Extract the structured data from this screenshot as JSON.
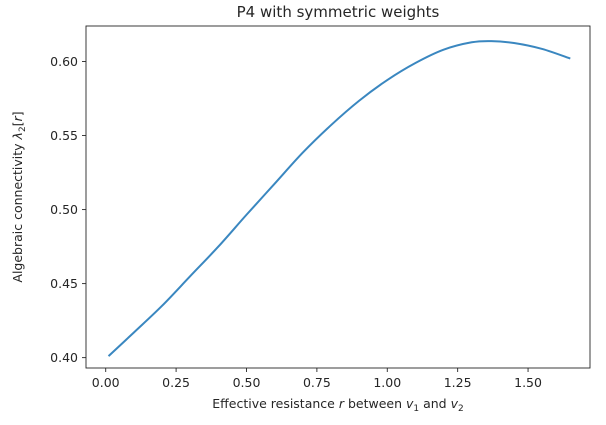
{
  "chart_data": {
    "type": "line",
    "title": "P4 with symmetric weights",
    "xlabel_parts": [
      "Effective resistance ",
      "r",
      " between ",
      "v",
      "1",
      " and ",
      "v",
      "2"
    ],
    "ylabel_parts": [
      "Algebraic connectivity ",
      "λ",
      "2",
      "[",
      "r",
      "]"
    ],
    "xlim": [
      -0.07,
      1.72
    ],
    "ylim": [
      0.393,
      0.624
    ],
    "xticks": [
      0.0,
      0.25,
      0.5,
      0.75,
      1.0,
      1.25,
      1.5
    ],
    "xtick_labels": [
      "0.00",
      "0.25",
      "0.50",
      "0.75",
      "1.00",
      "1.25",
      "1.50"
    ],
    "yticks": [
      0.4,
      0.45,
      0.5,
      0.55,
      0.6
    ],
    "ytick_labels": [
      "0.40",
      "0.45",
      "0.50",
      "0.55",
      "0.60"
    ],
    "grid": false,
    "line_color": "#3a87c0",
    "series": [
      {
        "x": [
          0.01,
          0.1,
          0.2,
          0.3,
          0.4,
          0.5,
          0.6,
          0.7,
          0.8,
          0.9,
          1.0,
          1.1,
          1.2,
          1.3,
          1.37,
          1.45,
          1.55,
          1.65
        ],
        "y": [
          0.401,
          0.417,
          0.435,
          0.455,
          0.475,
          0.4965,
          0.5175,
          0.5385,
          0.557,
          0.5735,
          0.5875,
          0.599,
          0.608,
          0.613,
          0.6138,
          0.6125,
          0.6085,
          0.602
        ]
      }
    ]
  }
}
